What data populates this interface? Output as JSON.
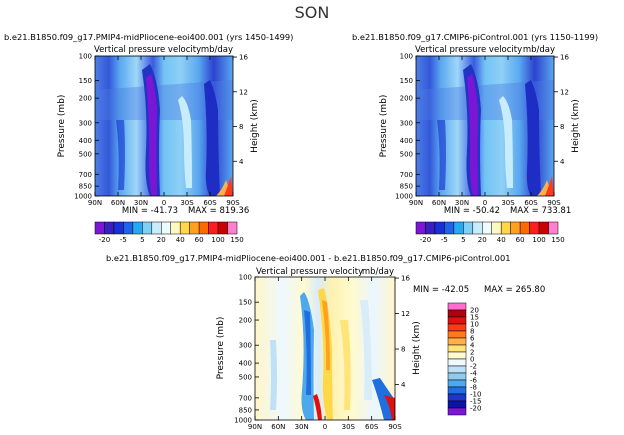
{
  "page_title": "SON",
  "labelbar_top": {
    "labels": [
      "-20",
      "-5",
      "5",
      "20",
      "40",
      "60",
      "100",
      "150"
    ],
    "colors": [
      "#7b16d6",
      "#3a1fbf",
      "#1a2fd8",
      "#1f63ea",
      "#24a9f3",
      "#7fd0f7",
      "#c9ecfb",
      "#eefbff",
      "#fff7c0",
      "#ffd84a",
      "#ffa01e",
      "#ff6a00",
      "#ff1e1e",
      "#cc0000",
      "#ff7fcf"
    ]
  },
  "labelbar_diff": {
    "labels": [
      "20",
      "15",
      "10",
      "8",
      "6",
      "4",
      "2",
      "0",
      "-2",
      "-4",
      "-6",
      "-8",
      "-10",
      "-15",
      "-20"
    ],
    "colors": [
      "#ff6fcf",
      "#b0000c",
      "#e0100e",
      "#ff3a1a",
      "#ff7a1f",
      "#ffb04a",
      "#ffe47a",
      "#fffad0",
      "#eef8ff",
      "#bfe1f7",
      "#8fcbf0",
      "#4ea8ec",
      "#1f6fe0",
      "#1e35c8",
      "#0c14a8",
      "#7b16d6"
    ]
  },
  "chart_data": [
    {
      "type": "contour",
      "title": "b.e21.B1850.f09_g17.PMIP4-midPliocene-eoi400.001 (yrs 1450-1499)",
      "subtitle_left": "Vertical pressure velocity",
      "subtitle_right": "mb/day",
      "ylabel": "Pressure (mb)",
      "ylabel_right": "Height (km)",
      "x_ticks": [
        "90N",
        "60N",
        "30N",
        "0",
        "30S",
        "60S",
        "90S"
      ],
      "y_ticks": [
        "100",
        "150",
        "200",
        "300",
        "400",
        "500",
        "700",
        "850",
        "1000"
      ],
      "y_right_ticks": [
        "16",
        "12",
        "8",
        "4"
      ],
      "min_label": "MIN = -41.73",
      "max_label": "MAX = 819.36"
    },
    {
      "type": "contour",
      "title": "b.e21.B1850.f09_g17.CMIP6-piControl.001 (yrs 1150-1199)",
      "subtitle_left": "Vertical pressure velocity",
      "subtitle_right": "mb/day",
      "ylabel": "Pressure (mb)",
      "ylabel_right": "Height (km)",
      "x_ticks": [
        "90N",
        "60N",
        "30N",
        "0",
        "30S",
        "60S",
        "90S"
      ],
      "y_ticks": [
        "100",
        "150",
        "200",
        "300",
        "400",
        "500",
        "700",
        "850",
        "1000"
      ],
      "y_right_ticks": [
        "16",
        "12",
        "8",
        "4"
      ],
      "min_label": "MIN = -50.42",
      "max_label": "MAX = 733.81"
    },
    {
      "type": "contour",
      "title": "b.e21.B1850.f09_g17.PMIP4-midPliocene-eoi400.001 - b.e21.B1850.f09_g17.CMIP6-piControl.001",
      "subtitle_left": "Vertical pressure velocity",
      "subtitle_right": "mb/day",
      "ylabel": "Pressure (mb)",
      "ylabel_right": "Height (km)",
      "x_ticks": [
        "90N",
        "60N",
        "30N",
        "0",
        "30S",
        "60S",
        "90S"
      ],
      "y_ticks": [
        "100",
        "150",
        "200",
        "300",
        "400",
        "500",
        "700",
        "850",
        "1000"
      ],
      "y_right_ticks": [
        "16",
        "12",
        "8",
        "4"
      ],
      "min_label": "MIN = -42.05",
      "max_label": "MAX = 265.80"
    }
  ]
}
